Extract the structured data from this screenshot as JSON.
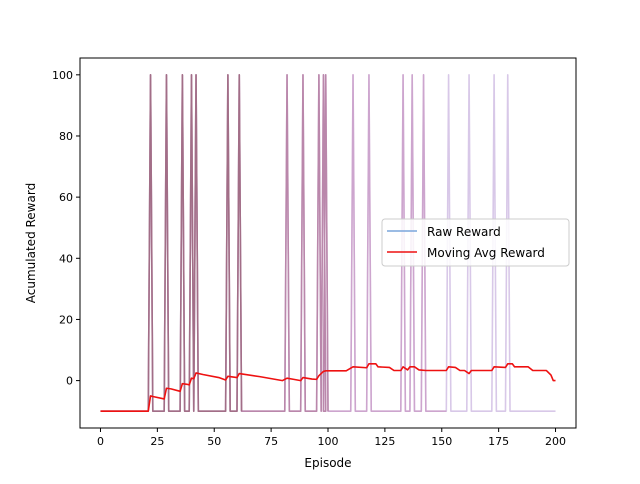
{
  "chart_data": {
    "type": "line",
    "title": "",
    "xlabel": "Episode",
    "ylabel": "Acumulated Reward",
    "xlim": [
      -9,
      209
    ],
    "ylim": [
      -15.5,
      105.5
    ],
    "xticks": [
      0,
      25,
      50,
      75,
      100,
      125,
      150,
      175,
      200
    ],
    "yticks": [
      0,
      20,
      40,
      60,
      80,
      100
    ],
    "grid": false,
    "legend_position": "center-right",
    "series": [
      {
        "name": "Raw Reward",
        "color": "#7aa6dc",
        "baseline": -10,
        "spike_value": 100,
        "spike_episodes": [
          22,
          29,
          36,
          40,
          42,
          56,
          61,
          82,
          89,
          96,
          98,
          99,
          111,
          118,
          133,
          137,
          142,
          153,
          162,
          173,
          179
        ],
        "x_range": [
          0,
          200
        ]
      },
      {
        "name": "Moving Avg Reward",
        "color": "#ee1111",
        "points": [
          [
            0,
            -10
          ],
          [
            21,
            -10
          ],
          [
            22,
            -5
          ],
          [
            23,
            -5.2
          ],
          [
            28,
            -6
          ],
          [
            29,
            -2.5
          ],
          [
            31,
            -2.7
          ],
          [
            35,
            -3.5
          ],
          [
            36,
            -1
          ],
          [
            38,
            -1.2
          ],
          [
            39,
            -1.4
          ],
          [
            40,
            0.8
          ],
          [
            41,
            0.6
          ],
          [
            42,
            2.5
          ],
          [
            45,
            2
          ],
          [
            52,
            1
          ],
          [
            55,
            0.2
          ],
          [
            56,
            1.4
          ],
          [
            60,
            1
          ],
          [
            61,
            2.3
          ],
          [
            70,
            1.3
          ],
          [
            80,
            0
          ],
          [
            82,
            0.8
          ],
          [
            85,
            0.4
          ],
          [
            88,
            0
          ],
          [
            89,
            1
          ],
          [
            93,
            0.5
          ],
          [
            95,
            0.4
          ],
          [
            96,
            1.6
          ],
          [
            98,
            3
          ],
          [
            99,
            3.2
          ],
          [
            108,
            3.2
          ],
          [
            111,
            4.5
          ],
          [
            117,
            4.2
          ],
          [
            118,
            5.5
          ],
          [
            121,
            5.5
          ],
          [
            122,
            4.5
          ],
          [
            127,
            4.3
          ],
          [
            129,
            3.3
          ],
          [
            132,
            3.3
          ],
          [
            133,
            4.5
          ],
          [
            135,
            3.5
          ],
          [
            136,
            4.5
          ],
          [
            138,
            4.5
          ],
          [
            140,
            3.5
          ],
          [
            143,
            3.3
          ],
          [
            152,
            3.3
          ],
          [
            153,
            4.5
          ],
          [
            156,
            4.3
          ],
          [
            158,
            3.3
          ],
          [
            160,
            3.3
          ],
          [
            162,
            2.3
          ],
          [
            163,
            3.3
          ],
          [
            172,
            3.3
          ],
          [
            173,
            4.5
          ],
          [
            178,
            4.3
          ],
          [
            179,
            5.5
          ],
          [
            181,
            5.5
          ],
          [
            182,
            4.5
          ],
          [
            188,
            4.5
          ],
          [
            190,
            3.3
          ],
          [
            196,
            3.3
          ],
          [
            198,
            1.8
          ],
          [
            199,
            0
          ],
          [
            200,
            0
          ]
        ]
      }
    ]
  }
}
